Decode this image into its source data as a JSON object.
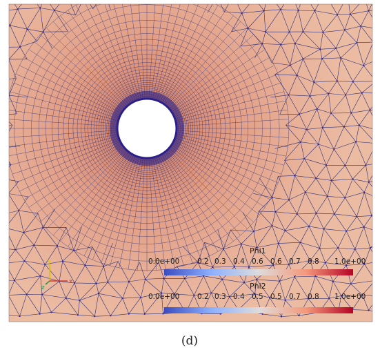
{
  "caption": "(d)",
  "colors": {
    "background_field": "#e9b79f",
    "field_mid": "#e3a088",
    "field_inner": "#d47f68",
    "mesh_line": "#2b2f78",
    "mesh_node": "#3a1f8c",
    "hole": "#ffffff"
  },
  "colorbars": [
    {
      "title": "Phi1",
      "ticks": [
        "0.0e+00",
        "0.2",
        "0.3",
        "0.4",
        "0.6",
        "0.6",
        "0.7",
        "0.8",
        "1.0e+00"
      ],
      "colormap": [
        "#3b4cc0",
        "#8db0fe",
        "#dddcdc",
        "#f4987a",
        "#b40426"
      ]
    },
    {
      "title": "Phi2",
      "ticks": [
        "0.0e+00",
        "0.2",
        "0.3",
        "0.4",
        "0.5",
        "0.5",
        "0.7",
        "0.8",
        "1.0e+00"
      ],
      "colormap": [
        "#3b4cc0",
        "#8db0fe",
        "#dddcdc",
        "#f4987a",
        "#b40426"
      ]
    }
  ],
  "axes_triad": {
    "y_label": "y",
    "x_label": "x",
    "z_label": "z",
    "y_color": "#d6c400",
    "x_color": "#d43a2a",
    "z_color": "#2a9a3a"
  }
}
